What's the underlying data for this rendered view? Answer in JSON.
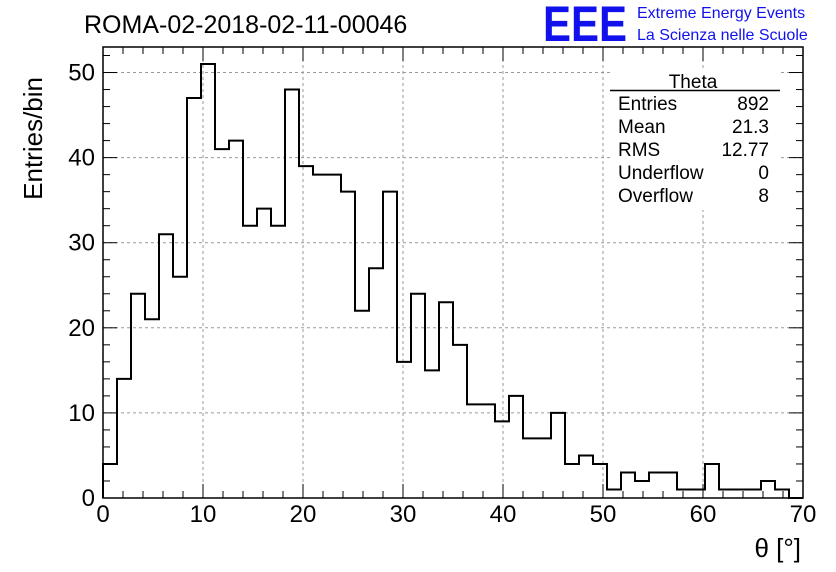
{
  "chart_data": {
    "type": "bar",
    "title": "ROMA-02-2018-02-11-00046",
    "xlabel": "θ [°]",
    "ylabel": "Entries/bin",
    "xlim": [
      0,
      70
    ],
    "ylim": [
      0,
      53
    ],
    "bin_width": 1.4,
    "grid": true,
    "x_ticks": [
      0,
      10,
      20,
      30,
      40,
      50,
      60,
      70
    ],
    "y_ticks": [
      0,
      10,
      20,
      30,
      40,
      50
    ],
    "values": [
      4,
      14,
      24,
      21,
      31,
      26,
      47,
      51,
      41,
      42,
      32,
      34,
      32,
      48,
      39,
      38,
      38,
      36,
      22,
      27,
      36,
      16,
      24,
      15,
      23,
      18,
      11,
      11,
      9,
      12,
      7,
      7,
      10,
      4,
      5,
      4,
      1,
      3,
      2,
      3,
      3,
      1,
      1,
      4,
      1,
      1,
      1,
      2,
      1,
      0
    ]
  },
  "stats_box": {
    "name": "Theta",
    "rows": [
      {
        "label": "Entries",
        "value": "892"
      },
      {
        "label": "Mean",
        "value": "21.3"
      },
      {
        "label": "RMS",
        "value": "12.77"
      },
      {
        "label": "Underflow",
        "value": "0"
      },
      {
        "label": "Overflow",
        "value": "8"
      }
    ]
  },
  "branding": {
    "logo_text": "EEE",
    "line1": "Extreme Energy Events",
    "line2": "La Scienza nelle Scuole",
    "color": "#1111ee"
  }
}
